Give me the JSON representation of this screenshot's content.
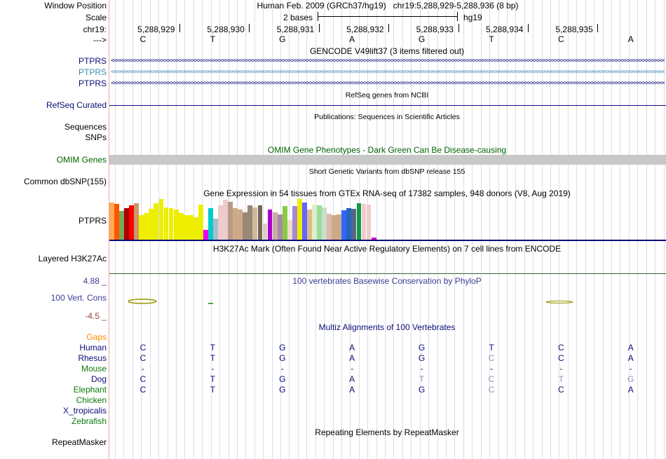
{
  "ruler": {
    "window_position_label": "Window Position",
    "scale_label": "Scale",
    "chrom_label": "chr19:",
    "direction_label": "--->",
    "title": "Human Feb. 2009 (GRCh37/hg19)   chr19:5,288,929-5,288,936 (8 bp)",
    "scale_text": "2 bases",
    "assembly": "hg19",
    "positions": [
      "5,288,929",
      "5,288,930",
      "5,288,931",
      "5,288,932",
      "5,288,933",
      "5,288,934",
      "5,288,935"
    ]
  },
  "bases": [
    "C",
    "T",
    "G",
    "A",
    "G",
    "T",
    "C",
    "A"
  ],
  "gencode": {
    "title": "GENCODE V49lift37 (3 items filtered out)",
    "labels": [
      "PTPRS",
      "PTPRS",
      "PTPRS"
    ],
    "colors": [
      "#0c0c78",
      "#3c8cb4",
      "#0c0c78"
    ]
  },
  "refseq": {
    "title": "RefSeq genes from NCBI",
    "label": "RefSeq Curated",
    "color": "#0c0c78"
  },
  "publications": {
    "title": "Publications: Sequences in Scientific Articles",
    "labels": [
      "Sequences",
      "SNPs"
    ]
  },
  "omim": {
    "title": "OMIM Gene Phenotypes - Dark Green Can Be Disease-causing",
    "label": "OMIM Genes",
    "color": "#006400",
    "bar_color": "#c8c8c8"
  },
  "dbsnp": {
    "title": "Short Genetic Variants from dbSNP release 155",
    "label": "Common dbSNP(155)"
  },
  "gtex": {
    "title": "Gene Expression in 54 tissues from GTEx RNA-seq of 17382 samples, 948 donors (V8, Aug 2019)",
    "label": "PTPRS",
    "values": [
      0.92,
      0.88,
      0.7,
      0.78,
      0.84,
      0.9,
      0.6,
      0.66,
      0.76,
      0.9,
      1.0,
      0.8,
      0.78,
      0.74,
      0.66,
      0.6,
      0.6,
      0.56,
      0.86,
      0.24,
      0.78,
      0.52,
      0.84,
      0.98,
      0.94,
      0.78,
      0.74,
      0.68,
      0.84,
      0.8,
      0.84,
      0.4,
      0.74,
      0.68,
      0.62,
      0.82,
      0.48,
      0.82,
      1.0,
      0.92,
      0.74,
      0.86,
      0.84,
      0.8,
      0.64,
      0.6,
      0.62,
      0.72,
      0.78,
      0.76,
      0.9,
      0.88,
      0.86,
      0.06
    ],
    "colors": [
      "#ffaa55",
      "#ff5500",
      "#77aa55",
      "#aa0000",
      "#ff0000",
      "#cc9966",
      "#eeee00",
      "#eeee00",
      "#eeee00",
      "#eeee00",
      "#eeee00",
      "#eeee00",
      "#eeee00",
      "#eeee00",
      "#eeee00",
      "#eeee00",
      "#eeee00",
      "#eeee00",
      "#eeee00",
      "#ee00ee",
      "#00cccc",
      "#aabbcc",
      "#eecccc",
      "#eecccc",
      "#bb9988",
      "#ccaa88",
      "#ccaa88",
      "#998877",
      "#998877",
      "#ccbb99",
      "#776655",
      "#ddccbb",
      "#aa00cc",
      "#ccaaaa",
      "#aa88aa",
      "#88cc44",
      "#eeddcc",
      "#aa88cc",
      "#eeee00",
      "#6666ff",
      "#ddbb88",
      "#ddeecc",
      "#99dd99",
      "#ccddcc",
      "#ddbbaa",
      "#ccaa88",
      "#ccaa88",
      "#3366ff",
      "#2266bb",
      "#556688",
      "#119944",
      "#eecccc",
      "#eecccc",
      "#cc00cc"
    ]
  },
  "h3k27ac": {
    "title": "H3K27Ac Mark (Often Found Near Active Regulatory Elements) on 7 cell lines from ENCODE",
    "label": "Layered H3K27Ac"
  },
  "phylop": {
    "title": "100 vertebrates Basewise Conservation by PhyloP",
    "label": "100 Vert. Cons",
    "max_label": "4.88 _",
    "min_label": "-4.5 _",
    "title_color": "#3c3c96",
    "max_color": "#3c3c96",
    "min_color": "#963c3c"
  },
  "multiz": {
    "title": "Multiz Alignments of 100 Vertebrates",
    "gaps_label": "Gaps",
    "gaps_color": "#ff8c00",
    "species": [
      {
        "name": "Human",
        "color": "#0c0c78",
        "bases": [
          "C",
          "T",
          "G",
          "A",
          "G",
          "T",
          "C",
          "A"
        ],
        "faded": [
          false,
          false,
          false,
          false,
          false,
          false,
          false,
          false
        ]
      },
      {
        "name": "Rhesus",
        "color": "#0c0c78",
        "bases": [
          "C",
          "T",
          "G",
          "A",
          "G",
          "C",
          "C",
          "A"
        ],
        "faded": [
          false,
          false,
          false,
          false,
          false,
          true,
          false,
          false
        ]
      },
      {
        "name": "Mouse",
        "color": "#0a7a0a",
        "bases": [
          "-",
          "-",
          "-",
          "-",
          "-",
          "-",
          "-",
          "-"
        ],
        "faded": [
          false,
          false,
          false,
          false,
          false,
          false,
          false,
          false
        ]
      },
      {
        "name": "Dog",
        "color": "#0c0c78",
        "bases": [
          "C",
          "T",
          "G",
          "A",
          "T",
          "C",
          "T",
          "G"
        ],
        "faded": [
          false,
          false,
          false,
          false,
          true,
          true,
          true,
          true
        ]
      },
      {
        "name": "Elephant",
        "color": "#0a7a0a",
        "bases": [
          "C",
          "T",
          "G",
          "A",
          "G",
          "C",
          "C",
          "A"
        ],
        "faded": [
          false,
          false,
          false,
          false,
          false,
          true,
          false,
          false
        ]
      },
      {
        "name": "Chicken",
        "color": "#0a7a0a",
        "bases": [],
        "faded": []
      },
      {
        "name": "X_tropicalis",
        "color": "#0c0c78",
        "bases": [],
        "faded": []
      },
      {
        "name": "Zebrafish",
        "color": "#0a7a0a",
        "bases": [],
        "faded": []
      }
    ]
  },
  "repeatmasker": {
    "title": "Repeating Elements by RepeatMasker",
    "label": "RepeatMasker"
  },
  "colors": {
    "sidebar_separator": "#e9a9a9",
    "grid_line": "#dcdce8",
    "navy": "#0c0c78",
    "teal": "#3c8cb4",
    "olive": "#969600",
    "h3k27ac_line": "#336633"
  }
}
